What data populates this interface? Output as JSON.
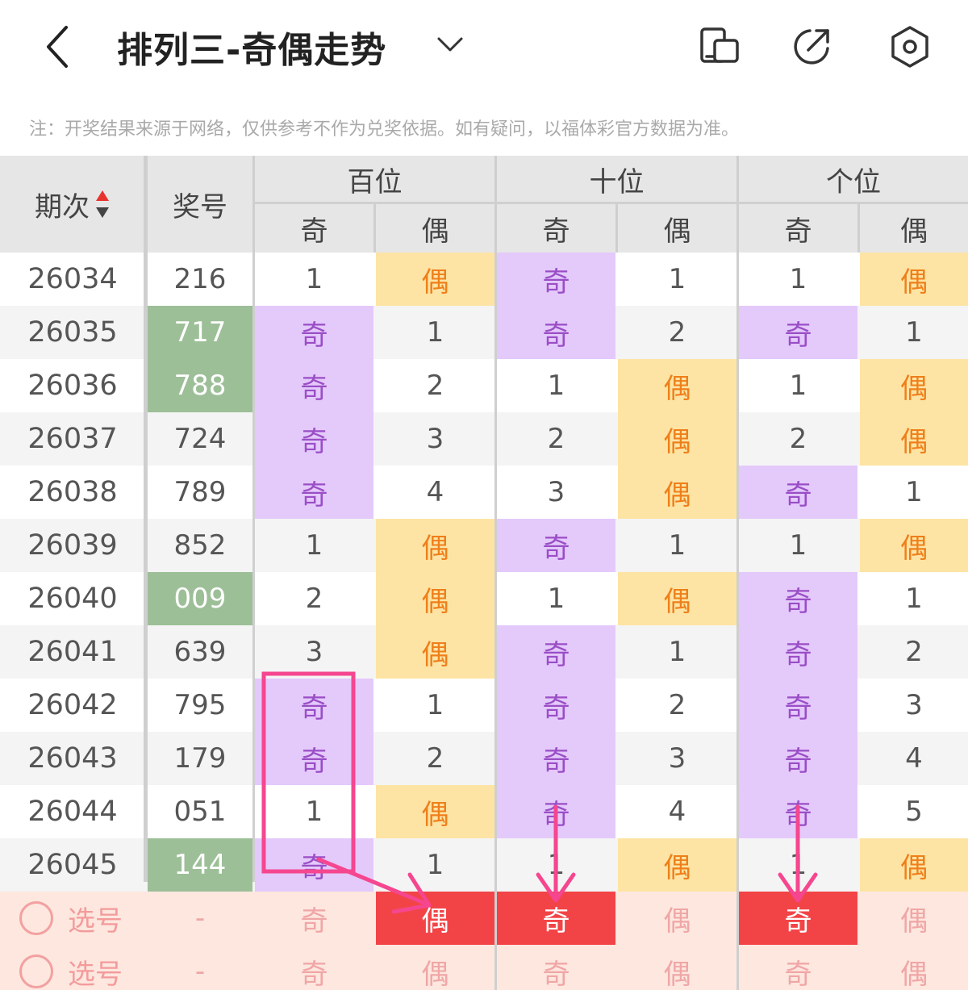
{
  "header": {
    "title": "排列三-奇偶走势",
    "back_icon": "chevron-left-icon",
    "dropdown_icon": "chevron-down-icon",
    "actions": [
      "device-switch-icon",
      "share-icon",
      "settings-icon"
    ]
  },
  "note": "注：开奖结果来源于网络，仅供参考不作为兑奖依据。如有疑问，以福体彩官方数据为准。",
  "table": {
    "col_issue": "期次",
    "col_number": "奖号",
    "groups": [
      "百位",
      "十位",
      "个位"
    ],
    "sub_odd": "奇",
    "sub_even": "偶",
    "rows": [
      {
        "issue": "26034",
        "number": "216",
        "green": false,
        "cells": [
          "1",
          "偶",
          "奇",
          "1",
          "1",
          "偶"
        ]
      },
      {
        "issue": "26035",
        "number": "717",
        "green": true,
        "cells": [
          "奇",
          "1",
          "奇",
          "2",
          "奇",
          "1"
        ]
      },
      {
        "issue": "26036",
        "number": "788",
        "green": true,
        "cells": [
          "奇",
          "2",
          "1",
          "偶",
          "1",
          "偶"
        ]
      },
      {
        "issue": "26037",
        "number": "724",
        "green": false,
        "cells": [
          "奇",
          "3",
          "2",
          "偶",
          "2",
          "偶"
        ]
      },
      {
        "issue": "26038",
        "number": "789",
        "green": false,
        "cells": [
          "奇",
          "4",
          "3",
          "偶",
          "奇",
          "1"
        ]
      },
      {
        "issue": "26039",
        "number": "852",
        "green": false,
        "cells": [
          "1",
          "偶",
          "奇",
          "1",
          "1",
          "偶"
        ]
      },
      {
        "issue": "26040",
        "number": "009",
        "green": true,
        "cells": [
          "2",
          "偶",
          "1",
          "偶",
          "奇",
          "1"
        ]
      },
      {
        "issue": "26041",
        "number": "639",
        "green": false,
        "cells": [
          "3",
          "偶",
          "奇",
          "1",
          "奇",
          "2"
        ]
      },
      {
        "issue": "26042",
        "number": "795",
        "green": false,
        "cells": [
          "奇",
          "1",
          "奇",
          "2",
          "奇",
          "3"
        ]
      },
      {
        "issue": "26043",
        "number": "179",
        "green": false,
        "cells": [
          "奇",
          "2",
          "奇",
          "3",
          "奇",
          "4"
        ]
      },
      {
        "issue": "26044",
        "number": "051",
        "green": false,
        "cells": [
          "1",
          "偶",
          "奇",
          "4",
          "奇",
          "5"
        ]
      },
      {
        "issue": "26045",
        "number": "144",
        "green": true,
        "cells": [
          "奇",
          "1",
          "1",
          "偶",
          "1",
          "偶"
        ]
      }
    ],
    "select_rows": [
      {
        "label": "选号",
        "number": "-",
        "cells": [
          "奇",
          "偶",
          "奇",
          "偶",
          "奇",
          "偶"
        ],
        "picked": [
          false,
          true,
          true,
          false,
          true,
          false
        ]
      },
      {
        "label": "选号",
        "number": "-",
        "cells": [
          "奇",
          "偶",
          "奇",
          "偶",
          "奇",
          "偶"
        ],
        "picked": [
          false,
          false,
          false,
          false,
          false,
          false
        ]
      }
    ]
  },
  "colors": {
    "odd_bg": "#e4c9fb",
    "odd_text": "#9a4ec6",
    "even_bg": "#fde4a4",
    "even_text": "#ef7f1a",
    "number_green": "#9dbf98",
    "picked": "#f24447",
    "annotation": "#f5468f"
  }
}
